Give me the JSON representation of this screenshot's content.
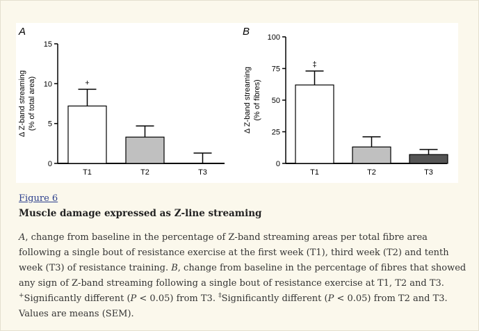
{
  "figure": {
    "link_label": "Figure 6",
    "title": "Muscle damage expressed as Z-line streaming",
    "caption": {
      "a_letter": "A",
      "part1": ", change from baseline in the percentage of Z-band streaming areas per total fibre area following a single bout of resistance exercise at the first week (T1), third week (T2) and tenth week (T3) of resistance training. ",
      "b_letter": "B",
      "part2": ", change from baseline in the percentage of fibres that showed any sign of Z-band streaming following a single bout of resistance exercise at T1, T2 and T3. ",
      "dagger": "+",
      "part3": "Significantly different (",
      "p1": "P",
      "part4": " < 0.05) from T3. ",
      "ddagger": "‡",
      "part5": "Significantly different (",
      "p2": "P",
      "part6": " < 0.05) from T2 and T3. Values are means (SEM)."
    }
  },
  "colors": {
    "white_bar": "#ffffff",
    "gray_bar": "#c0c0c0",
    "dark_bar": "#555555"
  },
  "chart_data": [
    {
      "type": "bar",
      "panel_label": "A",
      "ylabel_line1": "Δ Z-band streaming",
      "ylabel_line2": "(% of total area)",
      "categories": [
        "T1",
        "T2",
        "T3"
      ],
      "values": [
        7.2,
        3.3,
        0.0
      ],
      "errors": [
        2.1,
        1.4,
        1.3
      ],
      "bar_colors": [
        "#ffffff",
        "#c0c0c0",
        "#ffffff"
      ],
      "annotations": [
        "+",
        "",
        ""
      ],
      "ylim": [
        0,
        15
      ],
      "yticks": [
        0,
        5,
        10,
        15
      ]
    },
    {
      "type": "bar",
      "panel_label": "B",
      "ylabel_line1": "Δ Z-band streaming",
      "ylabel_line2": "(% of fibres)",
      "categories": [
        "T1",
        "T2",
        "T3"
      ],
      "values": [
        62,
        13,
        7
      ],
      "errors": [
        11,
        8,
        4
      ],
      "bar_colors": [
        "#ffffff",
        "#c0c0c0",
        "#555555"
      ],
      "annotations": [
        "‡",
        "",
        ""
      ],
      "ylim": [
        0,
        100
      ],
      "yticks": [
        0,
        25,
        50,
        75,
        100
      ]
    }
  ]
}
